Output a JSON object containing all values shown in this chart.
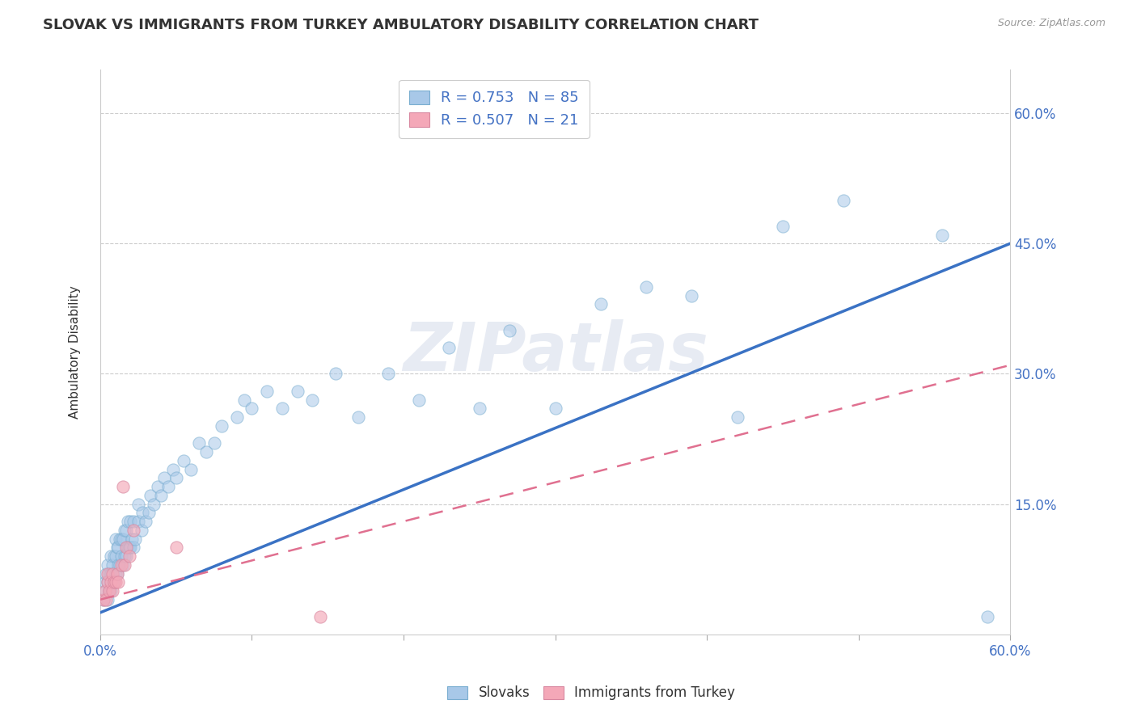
{
  "title": "SLOVAK VS IMMIGRANTS FROM TURKEY AMBULATORY DISABILITY CORRELATION CHART",
  "source": "Source: ZipAtlas.com",
  "xlabel": "",
  "ylabel": "Ambulatory Disability",
  "xmin": 0.0,
  "xmax": 0.6,
  "ymin": 0.0,
  "ymax": 0.65,
  "ytick_labels": [
    "15.0%",
    "30.0%",
    "45.0%",
    "60.0%"
  ],
  "ytick_values": [
    0.15,
    0.3,
    0.45,
    0.6
  ],
  "xtick_values": [
    0.0,
    0.1,
    0.2,
    0.3,
    0.4,
    0.5,
    0.6
  ],
  "legend_entry1": "R = 0.753   N = 85",
  "legend_entry2": "R = 0.507   N = 21",
  "blue_color": "#a8c8e8",
  "pink_color": "#f4a8b8",
  "trend_blue": "#3a72c4",
  "trend_pink": "#e07090",
  "blue_trendline_x": [
    0.0,
    0.6
  ],
  "blue_trendline_y": [
    0.025,
    0.45
  ],
  "pink_trendline_x": [
    0.0,
    0.6
  ],
  "pink_trendline_y": [
    0.04,
    0.31
  ],
  "slovaks_x": [
    0.002,
    0.003,
    0.004,
    0.004,
    0.005,
    0.005,
    0.005,
    0.006,
    0.006,
    0.007,
    0.007,
    0.007,
    0.008,
    0.008,
    0.009,
    0.009,
    0.01,
    0.01,
    0.01,
    0.011,
    0.011,
    0.012,
    0.012,
    0.013,
    0.013,
    0.014,
    0.014,
    0.015,
    0.015,
    0.016,
    0.016,
    0.017,
    0.017,
    0.018,
    0.018,
    0.019,
    0.02,
    0.02,
    0.021,
    0.022,
    0.022,
    0.023,
    0.025,
    0.025,
    0.027,
    0.028,
    0.03,
    0.032,
    0.033,
    0.035,
    0.038,
    0.04,
    0.042,
    0.045,
    0.048,
    0.05,
    0.055,
    0.06,
    0.065,
    0.07,
    0.075,
    0.08,
    0.09,
    0.095,
    0.1,
    0.11,
    0.12,
    0.13,
    0.14,
    0.155,
    0.17,
    0.19,
    0.21,
    0.23,
    0.25,
    0.27,
    0.3,
    0.33,
    0.36,
    0.39,
    0.42,
    0.45,
    0.49,
    0.555,
    0.585
  ],
  "slovaks_y": [
    0.04,
    0.06,
    0.05,
    0.07,
    0.04,
    0.06,
    0.08,
    0.05,
    0.07,
    0.05,
    0.07,
    0.09,
    0.06,
    0.08,
    0.06,
    0.09,
    0.07,
    0.09,
    0.11,
    0.07,
    0.1,
    0.08,
    0.1,
    0.08,
    0.11,
    0.09,
    0.11,
    0.08,
    0.11,
    0.09,
    0.12,
    0.09,
    0.12,
    0.1,
    0.13,
    0.1,
    0.1,
    0.13,
    0.11,
    0.1,
    0.13,
    0.11,
    0.13,
    0.15,
    0.12,
    0.14,
    0.13,
    0.14,
    0.16,
    0.15,
    0.17,
    0.16,
    0.18,
    0.17,
    0.19,
    0.18,
    0.2,
    0.19,
    0.22,
    0.21,
    0.22,
    0.24,
    0.25,
    0.27,
    0.26,
    0.28,
    0.26,
    0.28,
    0.27,
    0.3,
    0.25,
    0.3,
    0.27,
    0.33,
    0.26,
    0.35,
    0.26,
    0.38,
    0.4,
    0.39,
    0.25,
    0.47,
    0.5,
    0.46,
    0.02
  ],
  "turkey_x": [
    0.002,
    0.003,
    0.004,
    0.005,
    0.005,
    0.006,
    0.007,
    0.008,
    0.008,
    0.009,
    0.01,
    0.011,
    0.012,
    0.014,
    0.015,
    0.016,
    0.017,
    0.019,
    0.022,
    0.05,
    0.145
  ],
  "turkey_y": [
    0.04,
    0.05,
    0.04,
    0.06,
    0.07,
    0.05,
    0.06,
    0.05,
    0.07,
    0.06,
    0.06,
    0.07,
    0.06,
    0.08,
    0.17,
    0.08,
    0.1,
    0.09,
    0.12,
    0.1,
    0.02
  ]
}
